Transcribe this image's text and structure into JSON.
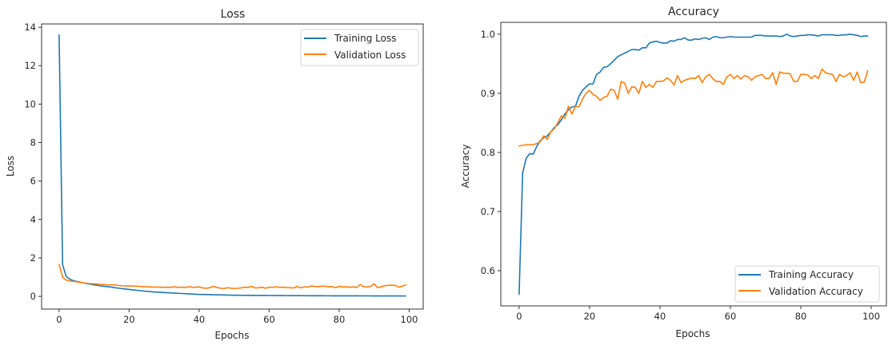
{
  "colors": {
    "training": "#1f77b4",
    "validation": "#ff7f0e",
    "axes": "#333333"
  },
  "chart_data": [
    {
      "type": "line",
      "title": "Loss",
      "xlabel": "Epochs",
      "ylabel": "Loss",
      "xlim": [
        -5,
        104
      ],
      "ylim": [
        -0.66,
        14.17
      ],
      "xticks": [
        0,
        20,
        40,
        60,
        80,
        100
      ],
      "xtick_labels": [
        "0",
        "20",
        "40",
        "60",
        "80",
        "100"
      ],
      "yticks": [
        0,
        2,
        4,
        6,
        8,
        10,
        12,
        14
      ],
      "ytick_labels": [
        "0",
        "2",
        "4",
        "6",
        "8",
        "10",
        "12",
        "14"
      ],
      "grid": false,
      "legend_position": "upper-right",
      "series": [
        {
          "name": "Training Loss",
          "color": "#1f77b4",
          "values": [
            13.6,
            1.65,
            1.05,
            0.9,
            0.82,
            0.78,
            0.74,
            0.7,
            0.66,
            0.63,
            0.6,
            0.57,
            0.54,
            0.52,
            0.5,
            0.48,
            0.45,
            0.43,
            0.4,
            0.38,
            0.36,
            0.34,
            0.32,
            0.3,
            0.28,
            0.26,
            0.25,
            0.23,
            0.22,
            0.21,
            0.2,
            0.19,
            0.18,
            0.17,
            0.16,
            0.15,
            0.14,
            0.13,
            0.12,
            0.11,
            0.1,
            0.1,
            0.095,
            0.09,
            0.085,
            0.08,
            0.078,
            0.075,
            0.07,
            0.065,
            0.06,
            0.058,
            0.056,
            0.055,
            0.053,
            0.052,
            0.05,
            0.049,
            0.048,
            0.047,
            0.046,
            0.045,
            0.044,
            0.043,
            0.042,
            0.041,
            0.04,
            0.039,
            0.038,
            0.037,
            0.036,
            0.035,
            0.034,
            0.034,
            0.033,
            0.032,
            0.031,
            0.031,
            0.03,
            0.03,
            0.029,
            0.029,
            0.028,
            0.028,
            0.027,
            0.027,
            0.026,
            0.026,
            0.025,
            0.025,
            0.024,
            0.024,
            0.023,
            0.023,
            0.022,
            0.022,
            0.021,
            0.021,
            0.02,
            0.02
          ]
        },
        {
          "name": "Validation Loss",
          "color": "#ff7f0e",
          "values": [
            1.66,
            1.0,
            0.85,
            0.8,
            0.78,
            0.76,
            0.73,
            0.7,
            0.68,
            0.66,
            0.65,
            0.64,
            0.62,
            0.61,
            0.6,
            0.6,
            0.59,
            0.57,
            0.55,
            0.54,
            0.54,
            0.53,
            0.53,
            0.52,
            0.5,
            0.5,
            0.49,
            0.48,
            0.49,
            0.48,
            0.47,
            0.48,
            0.47,
            0.5,
            0.47,
            0.48,
            0.46,
            0.5,
            0.48,
            0.47,
            0.5,
            0.44,
            0.42,
            0.45,
            0.52,
            0.47,
            0.43,
            0.4,
            0.45,
            0.43,
            0.41,
            0.42,
            0.44,
            0.48,
            0.47,
            0.52,
            0.44,
            0.45,
            0.48,
            0.42,
            0.48,
            0.47,
            0.5,
            0.47,
            0.48,
            0.46,
            0.45,
            0.44,
            0.52,
            0.44,
            0.5,
            0.48,
            0.54,
            0.52,
            0.5,
            0.53,
            0.52,
            0.5,
            0.51,
            0.45,
            0.52,
            0.49,
            0.5,
            0.47,
            0.5,
            0.46,
            0.62,
            0.5,
            0.49,
            0.52,
            0.65,
            0.45,
            0.5,
            0.55,
            0.58,
            0.58,
            0.57,
            0.48,
            0.52,
            0.6
          ]
        }
      ]
    },
    {
      "type": "line",
      "title": "Accuracy",
      "xlabel": "Epochs",
      "ylabel": "Accuracy",
      "xlim": [
        -5.2,
        104.3
      ],
      "ylim": [
        0.5405,
        1.02
      ],
      "xticks": [
        0,
        20,
        40,
        60,
        80,
        100
      ],
      "xtick_labels": [
        "0",
        "20",
        "40",
        "60",
        "80",
        "100"
      ],
      "yticks": [
        0.6,
        0.7,
        0.8,
        0.9,
        1.0
      ],
      "ytick_labels": [
        "0.6",
        "0.7",
        "0.8",
        "0.9",
        "1.0"
      ],
      "grid": false,
      "legend_position": "lower-right",
      "series": [
        {
          "name": "Training Accuracy",
          "color": "#1f77b4",
          "values": [
            0.56,
            0.765,
            0.79,
            0.798,
            0.797,
            0.81,
            0.82,
            0.825,
            0.828,
            0.835,
            0.842,
            0.847,
            0.855,
            0.865,
            0.872,
            0.877,
            0.878,
            0.895,
            0.905,
            0.911,
            0.916,
            0.916,
            0.932,
            0.936,
            0.944,
            0.945,
            0.95,
            0.956,
            0.962,
            0.965,
            0.968,
            0.971,
            0.974,
            0.974,
            0.973,
            0.977,
            0.977,
            0.985,
            0.987,
            0.988,
            0.986,
            0.985,
            0.985,
            0.989,
            0.988,
            0.991,
            0.991,
            0.994,
            0.99,
            0.99,
            0.992,
            0.991,
            0.993,
            0.994,
            0.991,
            0.995,
            0.996,
            0.994,
            0.994,
            0.995,
            0.996,
            0.995,
            0.995,
            0.995,
            0.995,
            0.995,
            0.995,
            0.998,
            0.998,
            0.998,
            0.997,
            0.997,
            0.997,
            0.997,
            0.996,
            0.997,
            1.0,
            0.997,
            0.996,
            0.997,
            0.998,
            0.998,
            0.999,
            0.999,
            0.998,
            0.997,
            0.999,
            0.999,
            0.999,
            0.999,
            0.998,
            0.998,
            0.999,
            0.999,
            1.0,
            0.999,
            0.998,
            0.996,
            0.997,
            0.997
          ]
        },
        {
          "name": "Validation Accuracy",
          "color": "#ff7f0e",
          "values": [
            0.811,
            0.812,
            0.813,
            0.813,
            0.813,
            0.815,
            0.818,
            0.828,
            0.822,
            0.835,
            0.84,
            0.85,
            0.862,
            0.858,
            0.878,
            0.865,
            0.878,
            0.877,
            0.89,
            0.9,
            0.905,
            0.898,
            0.895,
            0.888,
            0.893,
            0.895,
            0.907,
            0.905,
            0.89,
            0.92,
            0.917,
            0.9,
            0.911,
            0.91,
            0.9,
            0.92,
            0.91,
            0.915,
            0.91,
            0.92,
            0.92,
            0.921,
            0.926,
            0.922,
            0.914,
            0.93,
            0.918,
            0.922,
            0.924,
            0.926,
            0.925,
            0.93,
            0.918,
            0.928,
            0.932,
            0.925,
            0.92,
            0.92,
            0.915,
            0.928,
            0.932,
            0.925,
            0.93,
            0.924,
            0.93,
            0.928,
            0.922,
            0.928,
            0.93,
            0.932,
            0.925,
            0.925,
            0.935,
            0.915,
            0.936,
            0.934,
            0.934,
            0.933,
            0.92,
            0.92,
            0.932,
            0.932,
            0.931,
            0.925,
            0.93,
            0.925,
            0.941,
            0.935,
            0.933,
            0.932,
            0.92,
            0.932,
            0.928,
            0.93,
            0.935,
            0.922,
            0.936,
            0.918,
            0.919,
            0.938
          ]
        }
      ]
    }
  ]
}
